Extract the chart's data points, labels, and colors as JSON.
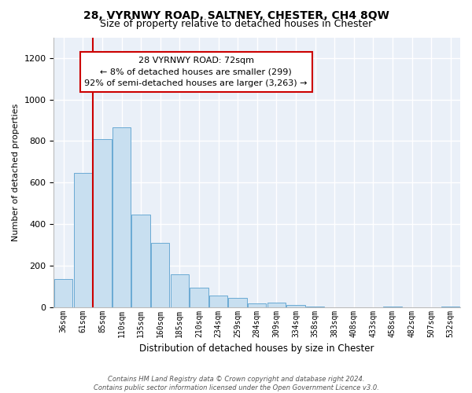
{
  "title": "28, VYRNWY ROAD, SALTNEY, CHESTER, CH4 8QW",
  "subtitle": "Size of property relative to detached houses in Chester",
  "xlabel": "Distribution of detached houses by size in Chester",
  "ylabel": "Number of detached properties",
  "bar_labels": [
    "36sqm",
    "61sqm",
    "85sqm",
    "110sqm",
    "135sqm",
    "160sqm",
    "185sqm",
    "210sqm",
    "234sqm",
    "259sqm",
    "284sqm",
    "309sqm",
    "334sqm",
    "358sqm",
    "383sqm",
    "408sqm",
    "433sqm",
    "458sqm",
    "482sqm",
    "507sqm",
    "532sqm"
  ],
  "bar_heights": [
    135,
    645,
    810,
    865,
    447,
    310,
    158,
    93,
    54,
    43,
    18,
    22,
    10,
    4,
    0,
    0,
    0,
    2,
    0,
    0,
    2
  ],
  "bar_color": "#c8dff0",
  "bar_edge_color": "#6aaad4",
  "vline_x": 1.5,
  "vline_color": "#cc0000",
  "ylim": [
    0,
    1300
  ],
  "yticks": [
    0,
    200,
    400,
    600,
    800,
    1000,
    1200
  ],
  "annotation_title": "28 VYRNWY ROAD: 72sqm",
  "annotation_line1": "← 8% of detached houses are smaller (299)",
  "annotation_line2": "92% of semi-detached houses are larger (3,263) →",
  "annotation_box_color": "#ffffff",
  "annotation_border_color": "#cc0000",
  "footer_line1": "Contains HM Land Registry data © Crown copyright and database right 2024.",
  "footer_line2": "Contains public sector information licensed under the Open Government Licence v3.0.",
  "background_color": "#eaf0f8",
  "grid_color": "#ffffff",
  "title_fontsize": 10,
  "subtitle_fontsize": 9
}
